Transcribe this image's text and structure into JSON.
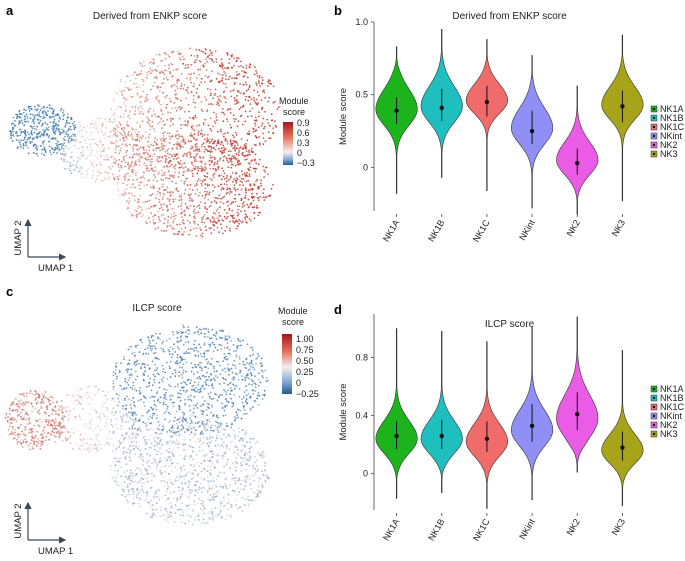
{
  "panels": {
    "a": {
      "label": "a",
      "title": "Derived from ENKP score",
      "axis_x": "UMAP 1",
      "axis_y": "UMAP 2",
      "colorbar_title": [
        "Module",
        "score"
      ],
      "colorbar_ticks": [
        "0.9",
        "0.6",
        "0.3",
        "0",
        "−0.3"
      ]
    },
    "c": {
      "label": "c",
      "title": "ILCP score",
      "axis_x": "UMAP 1",
      "axis_y": "UMAP 2",
      "colorbar_title": [
        "Module",
        "score"
      ],
      "colorbar_ticks": [
        "1.00",
        "0.75",
        "0.50",
        "0.25",
        "0",
        "−0.25"
      ]
    },
    "b": {
      "label": "b"
    },
    "d": {
      "label": "d"
    }
  },
  "colors": {
    "NK1A": "#1db31d",
    "NK1B": "#1fbfbf",
    "NK1C": "#f26b6b",
    "NKint": "#8f8ff5",
    "NK2": "#ea5be6",
    "NK3": "#a8a419",
    "heat_high": "#c0392b",
    "heat_mid": "#f2e6e3",
    "heat_low": "#2c6ea8"
  },
  "chart_data": [
    {
      "type": "violin",
      "title": "Derived from ENKP score",
      "xlabel": "",
      "ylabel": "Module score",
      "ylim": [
        -0.3,
        1.0
      ],
      "yticks": [
        "0",
        "0.5",
        "1.0"
      ],
      "ytick_values": [
        0,
        0.5,
        1.0
      ],
      "categories": [
        "NK1A",
        "NK1B",
        "NK1C",
        "NKint",
        "NK2",
        "NK3"
      ],
      "legend": [
        "NK1A",
        "NK1B",
        "NK1C",
        "NKint",
        "NK2",
        "NK3"
      ],
      "series": [
        {
          "name": "NK1A",
          "median": 0.39,
          "q1": 0.3,
          "q3": 0.48,
          "min": -0.18,
          "max": 0.83,
          "peak": 0.4,
          "spread": 0.11
        },
        {
          "name": "NK1B",
          "median": 0.41,
          "q1": 0.32,
          "q3": 0.54,
          "min": -0.07,
          "max": 0.95,
          "peak": 0.42,
          "spread": 0.11
        },
        {
          "name": "NK1C",
          "median": 0.45,
          "q1": 0.35,
          "q3": 0.56,
          "min": -0.16,
          "max": 0.88,
          "peak": 0.46,
          "spread": 0.09
        },
        {
          "name": "NKint",
          "median": 0.25,
          "q1": 0.16,
          "q3": 0.39,
          "min": -0.28,
          "max": 0.77,
          "peak": 0.27,
          "spread": 0.11
        },
        {
          "name": "NK2",
          "median": 0.03,
          "q1": -0.05,
          "q3": 0.13,
          "min": -0.32,
          "max": 0.56,
          "peak": 0.05,
          "spread": 0.1
        },
        {
          "name": "NK3",
          "median": 0.42,
          "q1": 0.31,
          "q3": 0.53,
          "min": -0.23,
          "max": 0.91,
          "peak": 0.43,
          "spread": 0.1
        }
      ]
    },
    {
      "type": "violin",
      "title": "ILCP score",
      "xlabel": "",
      "ylabel": "Module score",
      "ylim": [
        -0.25,
        1.1
      ],
      "yticks": [
        "0",
        "0.4",
        "0.8"
      ],
      "ytick_values": [
        0,
        0.4,
        0.8
      ],
      "categories": [
        "NK1A",
        "NK1B",
        "NK1C",
        "NKint",
        "NK2",
        "NK3"
      ],
      "legend": [
        "NK1A",
        "NK1B",
        "NK1C",
        "NKint",
        "NK2",
        "NK3"
      ],
      "series": [
        {
          "name": "NK1A",
          "median": 0.26,
          "q1": 0.17,
          "q3": 0.36,
          "min": -0.17,
          "max": 1.0,
          "peak": 0.24,
          "spread": 0.1
        },
        {
          "name": "NK1B",
          "median": 0.26,
          "q1": 0.17,
          "q3": 0.37,
          "min": -0.13,
          "max": 0.98,
          "peak": 0.24,
          "spread": 0.1
        },
        {
          "name": "NK1C",
          "median": 0.24,
          "q1": 0.15,
          "q3": 0.36,
          "min": -0.24,
          "max": 0.91,
          "peak": 0.22,
          "spread": 0.1
        },
        {
          "name": "NKint",
          "median": 0.33,
          "q1": 0.22,
          "q3": 0.48,
          "min": -0.18,
          "max": 1.01,
          "peak": 0.3,
          "spread": 0.11
        },
        {
          "name": "NK2",
          "median": 0.41,
          "q1": 0.3,
          "q3": 0.56,
          "min": 0.01,
          "max": 1.08,
          "peak": 0.38,
          "spread": 0.13
        },
        {
          "name": "NK3",
          "median": 0.18,
          "q1": 0.09,
          "q3": 0.29,
          "min": -0.22,
          "max": 0.85,
          "peak": 0.16,
          "spread": 0.09
        }
      ]
    }
  ]
}
